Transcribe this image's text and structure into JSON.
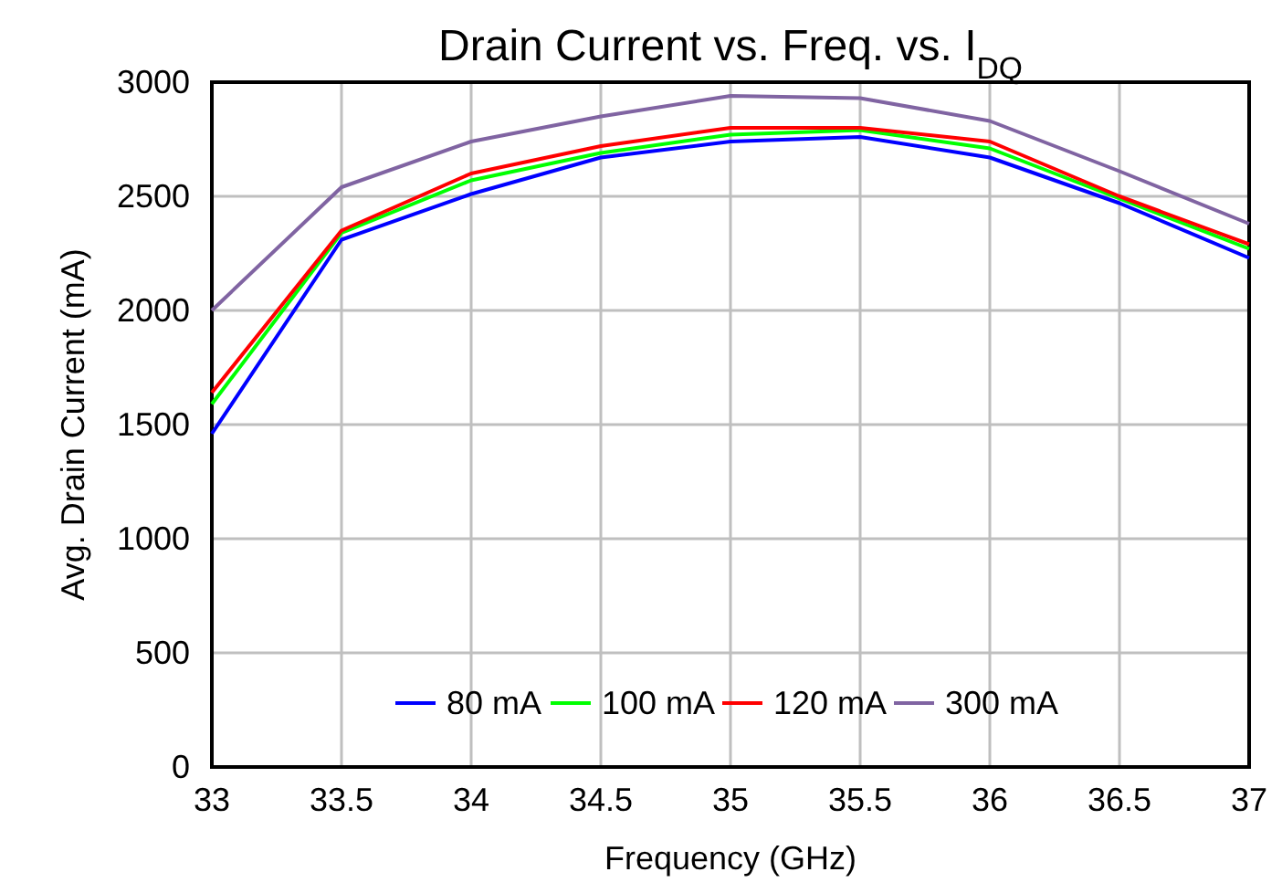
{
  "chart_data": {
    "type": "line",
    "title": "Drain Current vs. Freq. vs. I$_{DQ}$",
    "xlabel": "Frequency (GHz)",
    "ylabel": "Avg. Drain Current (mA)",
    "x": [
      33,
      33.5,
      34,
      34.5,
      35,
      35.5,
      36,
      36.5,
      37
    ],
    "series": [
      {
        "name": "80 mA",
        "color": "#0000ff",
        "values": [
          1460,
          2310,
          2510,
          2670,
          2740,
          2760,
          2670,
          2470,
          2230
        ]
      },
      {
        "name": "100 mA",
        "color": "#00ff00",
        "values": [
          1590,
          2340,
          2570,
          2690,
          2770,
          2790,
          2710,
          2490,
          2270
        ]
      },
      {
        "name": "120 mA",
        "color": "#ff0000",
        "values": [
          1640,
          2350,
          2600,
          2720,
          2800,
          2800,
          2740,
          2500,
          2290
        ]
      },
      {
        "name": "300 mA",
        "color": "#8064a2",
        "values": [
          2000,
          2540,
          2740,
          2850,
          2940,
          2930,
          2830,
          2610,
          2380
        ]
      }
    ],
    "xlim": [
      33,
      37
    ],
    "xticks": [
      33,
      33.5,
      34,
      34.5,
      35,
      35.5,
      36,
      36.5,
      37
    ],
    "ylim": [
      0,
      3000
    ],
    "yticks": [
      0,
      500,
      1000,
      1500,
      2000,
      2500,
      3000
    ],
    "grid": true,
    "legend": "bottom",
    "marker": "none",
    "line_style": "solid"
  }
}
